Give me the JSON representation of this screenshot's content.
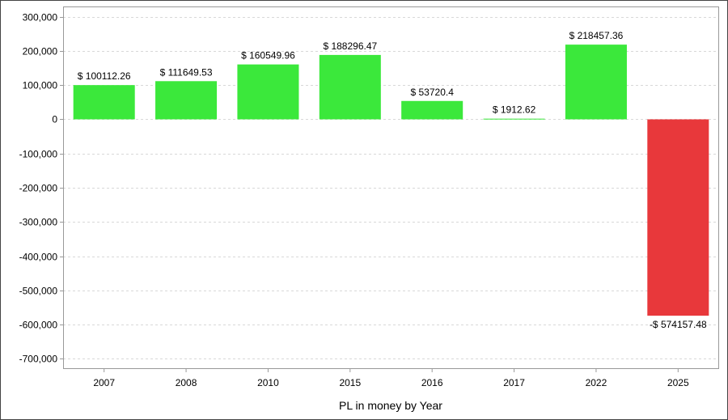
{
  "chart_data": {
    "type": "bar",
    "categories": [
      "2007",
      "2008",
      "2010",
      "2015",
      "2016",
      "2017",
      "2022",
      "2025"
    ],
    "values": [
      100112.26,
      111649.53,
      160549.96,
      188296.47,
      53720.4,
      1912.62,
      218457.36,
      -574157.48
    ],
    "data_labels": [
      "$ 100112.26",
      "$ 111649.53",
      "$ 160549.96",
      "$ 188296.47",
      "$ 53720.4",
      "$ 1912.62",
      "$ 218457.36",
      "-$ 574157.48"
    ],
    "title": "",
    "xlabel": "PL in money by Year",
    "ylabel": "",
    "ylim": [
      -730000,
      330000
    ],
    "y_ticks": [
      300000,
      200000,
      100000,
      0,
      -100000,
      -200000,
      -300000,
      -400000,
      -500000,
      -600000,
      -700000
    ],
    "y_tick_labels": [
      "300,000",
      "200,000",
      "100,000",
      "0",
      "-100,000",
      "-200,000",
      "-300,000",
      "-400,000",
      "-500,000",
      "-600,000",
      "-700,000"
    ],
    "grid": true,
    "legend": "none",
    "colors": {
      "positive": "#3be83b",
      "negative": "#e8383b",
      "grid": "#d8d8d8",
      "axis": "#999999"
    }
  }
}
